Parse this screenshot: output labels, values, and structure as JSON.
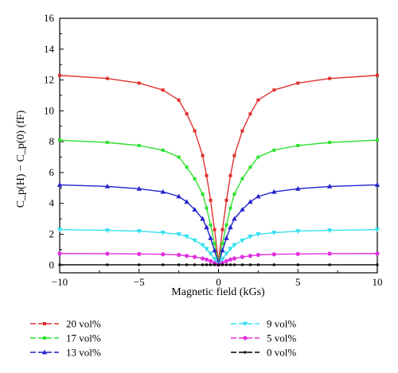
{
  "chart_data": {
    "type": "line",
    "xlabel": "Magnetic field (kGs)",
    "ylabel": "C_p(H) − C_p(0) (fF)",
    "xlim": [
      -10,
      10
    ],
    "ylim": [
      -0.5,
      16
    ],
    "x_ticks": [
      -10,
      -5,
      0,
      5,
      10
    ],
    "y_ticks": [
      0,
      2,
      4,
      6,
      8,
      10,
      12,
      14,
      16
    ],
    "grid": false,
    "legend_position": "bottom",
    "x": [
      -10,
      -7,
      -5,
      -3.5,
      -2.5,
      -2,
      -1.5,
      -1,
      -0.75,
      -0.5,
      -0.25,
      0,
      0.25,
      0.5,
      0.75,
      1,
      1.5,
      2,
      2.5,
      3.5,
      5,
      7,
      10
    ],
    "series": [
      {
        "name": "20 vol%",
        "color": "#e03030",
        "marker": "square",
        "values": [
          12.3,
          12.1,
          11.8,
          11.35,
          10.7,
          9.8,
          8.7,
          7.1,
          5.8,
          4.2,
          2.3,
          0.25,
          2.3,
          4.2,
          5.8,
          7.1,
          8.7,
          9.8,
          10.7,
          11.35,
          11.8,
          12.1,
          12.3
        ]
      },
      {
        "name": "17 vol%",
        "color": "#2ee02e",
        "marker": "square",
        "values": [
          8.1,
          7.95,
          7.75,
          7.45,
          7.0,
          6.35,
          5.6,
          4.6,
          3.7,
          2.6,
          1.4,
          0.15,
          1.4,
          2.6,
          3.7,
          4.6,
          5.6,
          6.35,
          7.0,
          7.45,
          7.75,
          7.95,
          8.1
        ]
      },
      {
        "name": "13 vol%",
        "color": "#2222cc",
        "marker": "triangle-up",
        "values": [
          5.2,
          5.1,
          4.95,
          4.75,
          4.45,
          4.1,
          3.6,
          3.0,
          2.45,
          1.75,
          0.95,
          0.1,
          0.95,
          1.75,
          2.45,
          3.0,
          3.6,
          4.1,
          4.45,
          4.75,
          4.95,
          5.1,
          5.2
        ]
      },
      {
        "name": "9 vol%",
        "color": "#33e0f0",
        "marker": "triangle-down",
        "values": [
          2.3,
          2.25,
          2.2,
          2.1,
          2.0,
          1.85,
          1.6,
          1.3,
          1.05,
          0.75,
          0.4,
          0.05,
          0.4,
          0.75,
          1.05,
          1.3,
          1.6,
          1.85,
          2.0,
          2.1,
          2.2,
          2.25,
          2.3
        ]
      },
      {
        "name": "5 vol%",
        "color": "#e030e0",
        "marker": "circle",
        "values": [
          0.75,
          0.74,
          0.72,
          0.7,
          0.66,
          0.6,
          0.53,
          0.43,
          0.36,
          0.26,
          0.14,
          0.02,
          0.14,
          0.26,
          0.36,
          0.43,
          0.53,
          0.6,
          0.66,
          0.7,
          0.72,
          0.74,
          0.75
        ]
      },
      {
        "name": "0 vol%",
        "color": "#000000",
        "marker": "square-small",
        "values": [
          0.02,
          0.02,
          0.02,
          0.02,
          0.02,
          0.02,
          0.02,
          0.02,
          0.02,
          0.02,
          0.02,
          0.02,
          0.02,
          0.02,
          0.02,
          0.02,
          0.02,
          0.02,
          0.02,
          0.02,
          0.02,
          0.02,
          0.02
        ]
      }
    ]
  }
}
